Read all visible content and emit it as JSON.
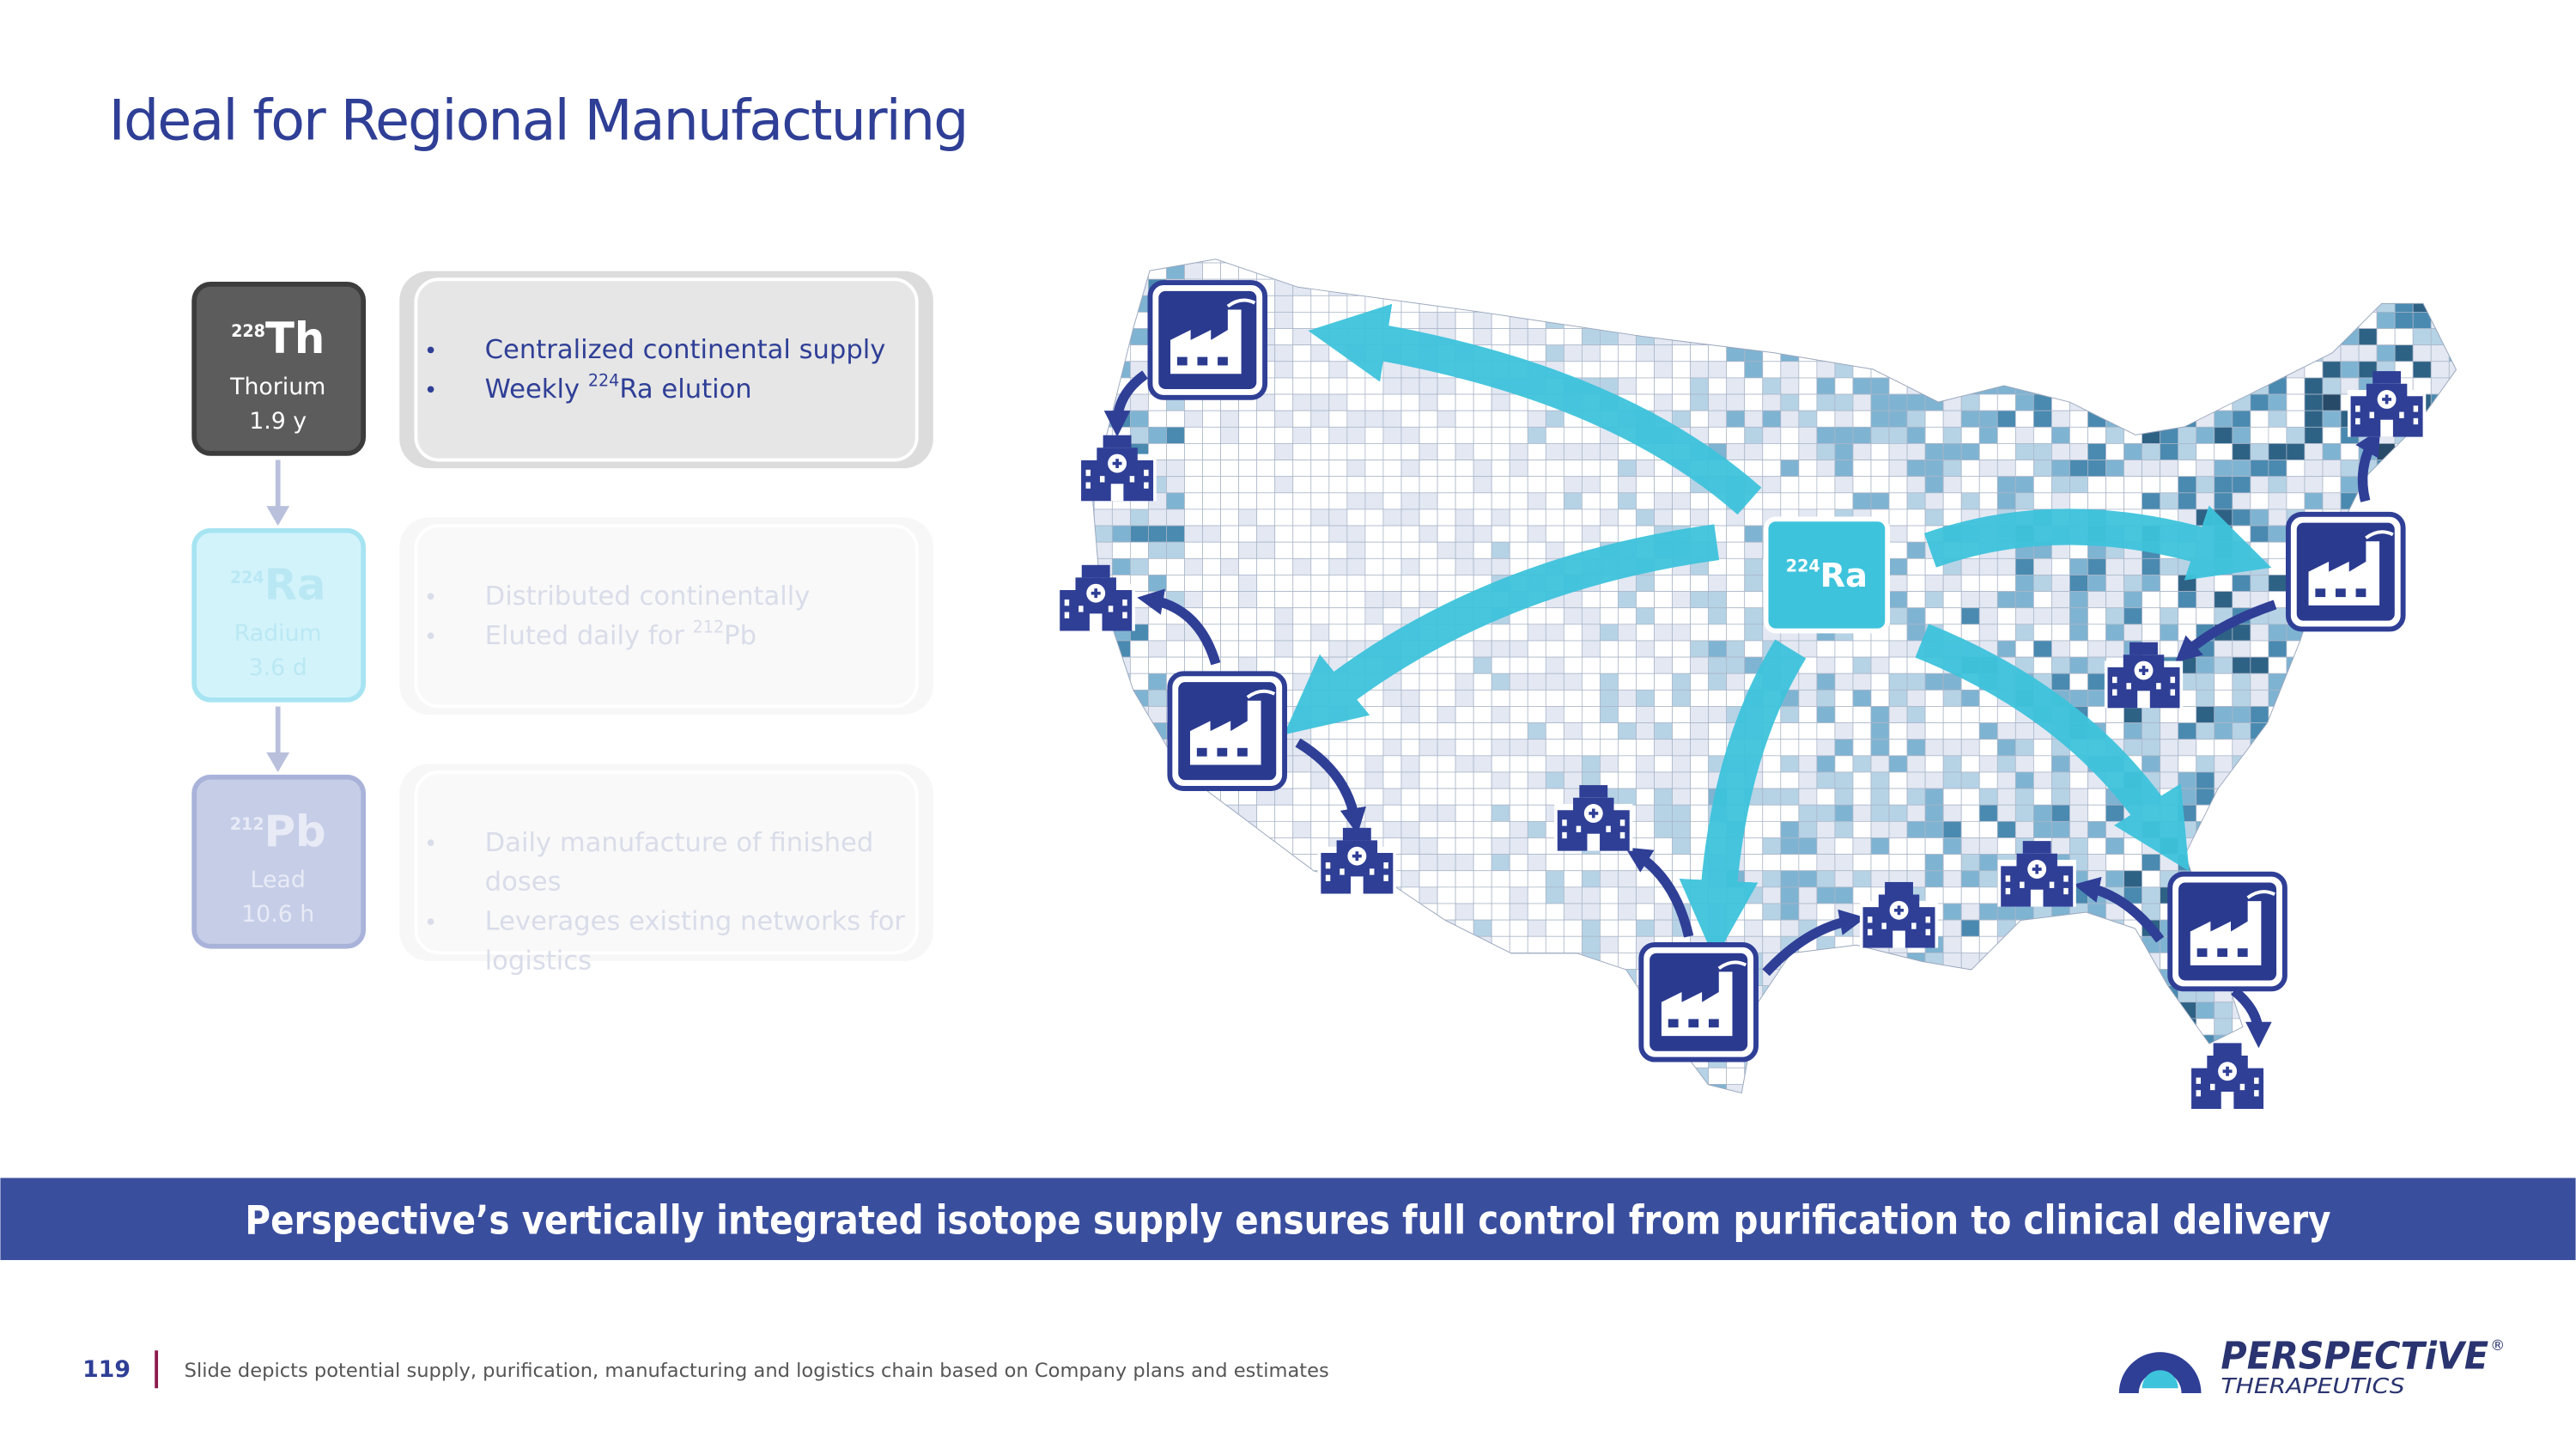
{
  "title": "Ideal for Regional Manufacturing",
  "isotopes": [
    {
      "mass": "228",
      "symbol": "Th",
      "name": "Thorium",
      "half_life": "1.9 y",
      "bullets": [
        {
          "lines": [
            "Centralized continental supply"
          ]
        },
        {
          "text": "Weekly ",
          "sup": "224",
          "after": "Ra elution"
        }
      ]
    },
    {
      "mass": "224",
      "symbol": "Ra",
      "name": "Radium",
      "half_life": "3.6 d",
      "bullets": [
        {
          "lines": [
            "Distributed continentally"
          ]
        },
        {
          "text": "Eluted daily for ",
          "sup": "212",
          "after": "Pb"
        }
      ]
    },
    {
      "mass": "212",
      "symbol": "Pb",
      "name": "Lead",
      "half_life": "10.6 h",
      "bullets": [
        {
          "lines": [
            "Daily manufacture of finished",
            "doses"
          ]
        },
        {
          "lines": [
            "Leverages existing networks for",
            "logistics"
          ]
        }
      ]
    }
  ],
  "map_label": {
    "sup": "224",
    "symbol": "Ra"
  },
  "banner": "Perspective’s vertically integrated isotope supply ensures full control from purification to clinical delivery",
  "footer": {
    "page": "119",
    "note": "Slide depicts potential supply, purification, manufacturing and logistics chain based on Company plans and estimates"
  },
  "logo": {
    "name": "PERSPECTiVE",
    "mark": "®",
    "sub": "THERAPEUTICS"
  }
}
